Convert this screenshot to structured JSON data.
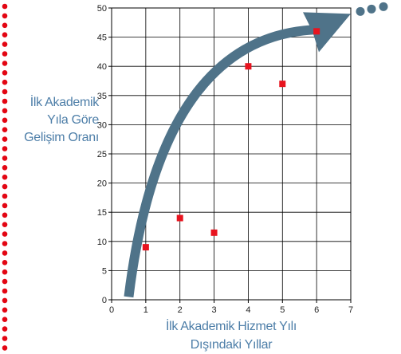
{
  "chart_data": {
    "type": "scatter",
    "x": [
      1,
      2,
      3,
      4,
      5,
      6
    ],
    "y": [
      9,
      14,
      11.5,
      40,
      37,
      46
    ],
    "xlabel_lines": [
      "İlk Akademik Hizmet Yılı",
      "Dışındaki Yıllar"
    ],
    "ylabel_lines": [
      "İlk Akademik",
      "Yıla Göre",
      "Gelişim Oranı"
    ],
    "xlim": [
      0,
      7
    ],
    "ylim": [
      0,
      50
    ],
    "xticks": [
      "0",
      "1",
      "2",
      "3",
      "4",
      "5",
      "6",
      "7"
    ],
    "yticks": [
      "0",
      "5",
      "10",
      "15",
      "20",
      "25",
      "30",
      "35",
      "40",
      "45",
      "50"
    ],
    "grid": true,
    "trend_arrow": {
      "from": [
        0.5,
        0.5
      ],
      "to": [
        7,
        49
      ]
    },
    "colors": {
      "points": "#e8141f",
      "arrow": "#4f7389",
      "label_text": "#4d7ea8",
      "grid": "#000000",
      "border_dots": "#e30613"
    }
  }
}
